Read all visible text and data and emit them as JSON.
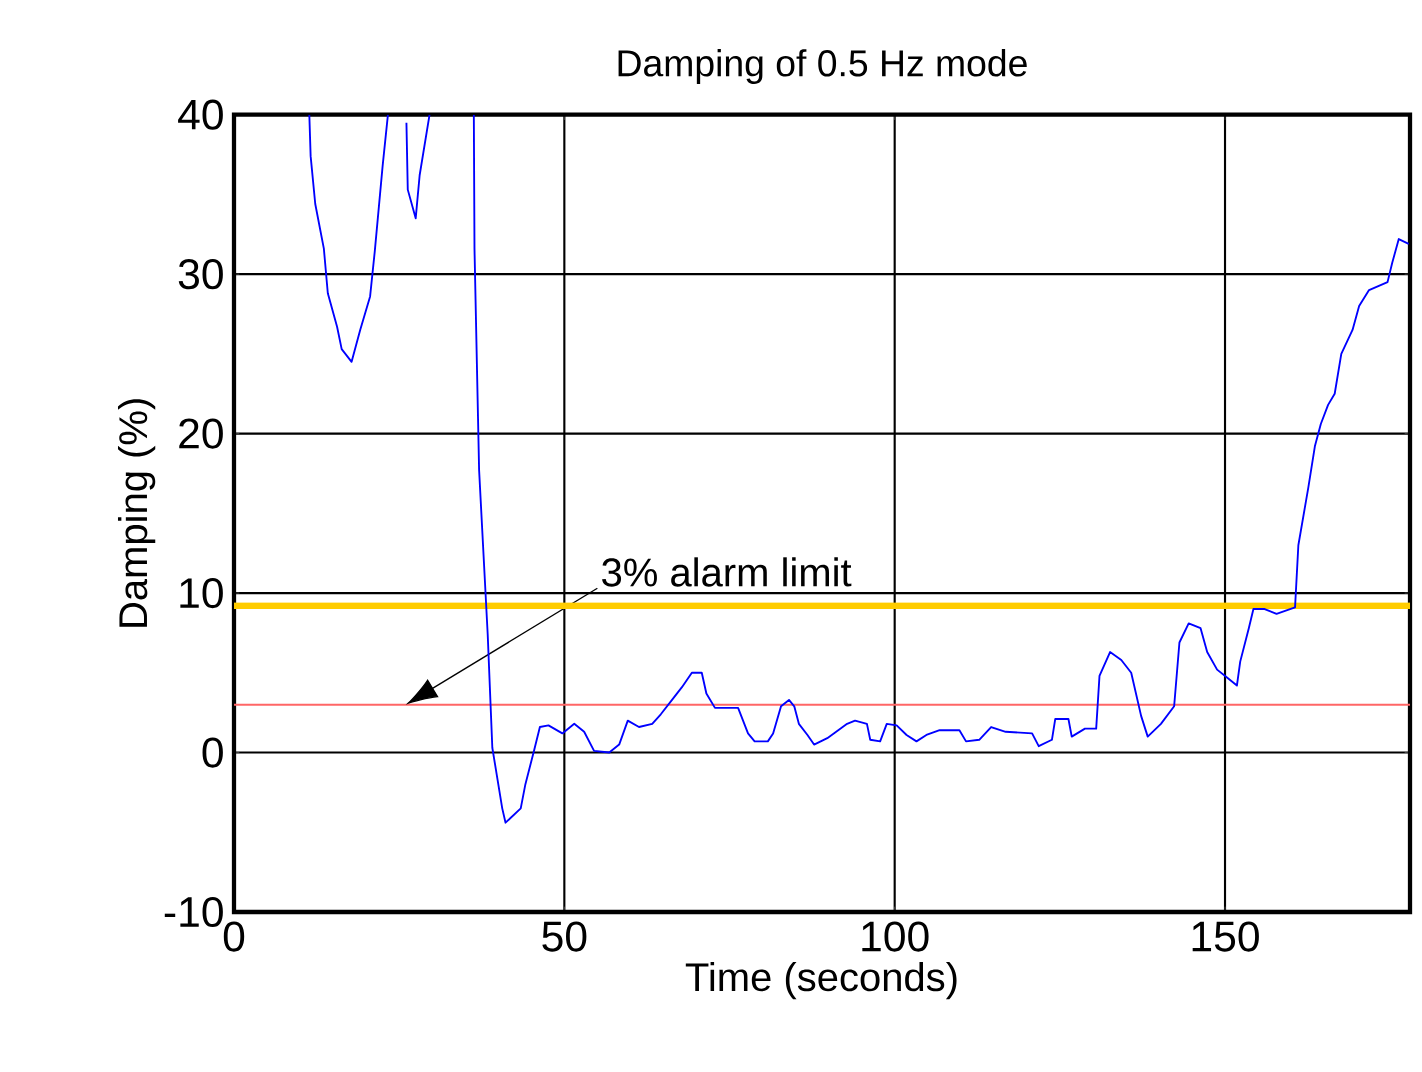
{
  "chart_data": {
    "type": "line",
    "title": "Damping of 0.5 Hz mode",
    "xlabel": "Time (seconds)",
    "ylabel": "Damping (%)",
    "xlim": [
      0,
      178
    ],
    "ylim": [
      -10,
      40
    ],
    "xticks": [
      0,
      50,
      100,
      150
    ],
    "yticks": [
      -10,
      0,
      10,
      20,
      30,
      40
    ],
    "grid": true,
    "series": [
      {
        "color": "#0000ff",
        "x": [
          11.4,
          11.6,
          12.3,
          13.6,
          14.2,
          15.6,
          16.3,
          17.8,
          19.1,
          20.6,
          21.3,
          22.5,
          23.3,
          23.5,
          26.1,
          26.3,
          27.5,
          28.1,
          29.6,
          30,
          36.3,
          36.4,
          37.1,
          38.4,
          39.1,
          40.6,
          41.1,
          43.4,
          44.1,
          45.4,
          46.3,
          47.6,
          49.7,
          51.5,
          53,
          54.5,
          56.8,
          58.3,
          59.6,
          61.3,
          63.3,
          64.6,
          66.3,
          67.8,
          69.3,
          70.8,
          71.5,
          72.8,
          76.3,
          77.8,
          78.8,
          80.8,
          81.6,
          82.8,
          84,
          84.8,
          85.5,
          86.8,
          87.8,
          89.8,
          92.8,
          94,
          95.8,
          96.3,
          97.8,
          98.8,
          100.3,
          101.8,
          103.3,
          104.8,
          106.8,
          109.8,
          110.8,
          112.8,
          114.6,
          116.8,
          120.8,
          121.8,
          123.8,
          124.3,
          126.3,
          126.8,
          128.8,
          130.5,
          131,
          132.6,
          134.3,
          135.8,
          137.3,
          138.3,
          140.3,
          142.3,
          143.1,
          144.5,
          146.3,
          147.3,
          148.8,
          150.3,
          151.8,
          152.3,
          153.6,
          154.3,
          156,
          157.8,
          160.6,
          161.1,
          162.6,
          163.6,
          164.5,
          165.6,
          166.6,
          167.6,
          169.3,
          170.3,
          171.8,
          174.6,
          175.3,
          176.3,
          177.8
        ],
        "values": [
          40,
          37.4,
          34.4,
          31.6,
          28.8,
          26.7,
          25.3,
          24.5,
          26.5,
          28.6,
          31.4,
          36.8,
          40,
          null,
          39.5,
          35.3,
          33.5,
          36.2,
          40,
          null,
          40,
          31.6,
          17.7,
          7.4,
          0.3,
          -3.5,
          -4.4,
          -3.5,
          -2.0,
          0.1,
          1.6,
          1.7,
          1.2,
          1.8,
          1.3,
          0.1,
          0,
          0.5,
          2.0,
          1.6,
          1.8,
          2.4,
          3.3,
          4.1,
          5.0,
          5.0,
          3.7,
          2.8,
          2.8,
          1.2,
          0.7,
          0.7,
          1.2,
          2.9,
          3.3,
          2.9,
          1.8,
          1.1,
          0.5,
          0.9,
          1.8,
          2.0,
          1.8,
          0.8,
          0.7,
          1.8,
          1.7,
          1.1,
          0.7,
          1.1,
          1.4,
          1.4,
          0.7,
          0.8,
          1.6,
          1.3,
          1.2,
          0.4,
          0.8,
          2.1,
          2.1,
          1.0,
          1.5,
          1.5,
          4.8,
          6.3,
          5.8,
          5.0,
          2.3,
          1.0,
          1.8,
          2.9,
          6.9,
          8.1,
          7.8,
          6.3,
          5.2,
          4.7,
          4.2,
          5.7,
          7.8,
          9.0,
          9.0,
          8.7,
          9.1,
          13.0,
          16.6,
          19.2,
          20.6,
          21.8,
          22.5,
          25.0,
          26.5,
          28.0,
          29.0,
          29.5,
          30.7,
          32.2,
          31.9
        ]
      }
    ],
    "ref_lines": [
      {
        "axis": "y",
        "value": 3,
        "label": "3% alarm limit",
        "color": "#ff6666"
      },
      {
        "axis": "y",
        "value": 9.2,
        "color": "#ffcc00"
      }
    ]
  }
}
